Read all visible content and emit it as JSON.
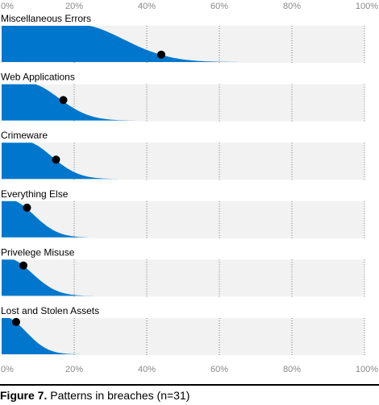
{
  "chart_data": {
    "type": "area",
    "title": "",
    "xlabel": "",
    "ylabel": "",
    "xlim": [
      0,
      100
    ],
    "x_ticks": [
      "0%",
      "20%",
      "40%",
      "60%",
      "80%",
      "100%"
    ],
    "grid": true,
    "fill_color": "#0077CC",
    "background_color": "#F2F2F2",
    "point_color": "#000000",
    "series": [
      {
        "name": "Miscellaneous Errors",
        "median": 44,
        "spread_to": 70
      },
      {
        "name": "Web Applications",
        "median": 17,
        "spread_to": 40
      },
      {
        "name": "Crimeware",
        "median": 15,
        "spread_to": 35
      },
      {
        "name": "Everything Else",
        "median": 7,
        "spread_to": 28
      },
      {
        "name": "Privelege Misuse",
        "median": 6,
        "spread_to": 28
      },
      {
        "name": "Lost and Stolen Assets",
        "median": 4,
        "spread_to": 24
      }
    ]
  },
  "caption": {
    "figure": "Figure 7.",
    "text": " Patterns in breaches (n=31)"
  }
}
